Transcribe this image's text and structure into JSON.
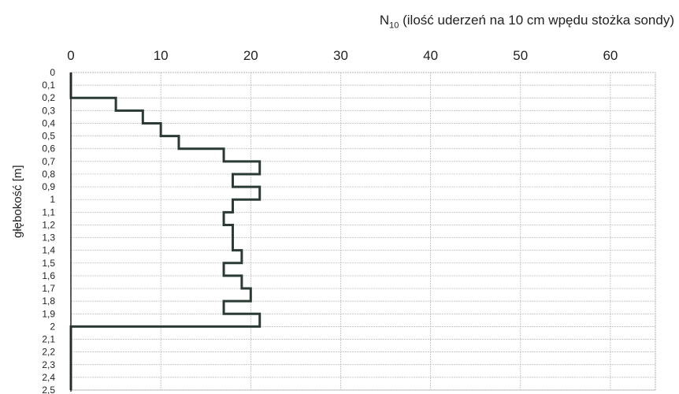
{
  "chart_data": {
    "type": "line",
    "title_main": "N",
    "title_sub": "10",
    "title_rest": " (ilość uderzeń na 10 cm wpędu stożka sondy)",
    "ylabel": "głębokość [m]",
    "xlim": [
      0,
      65
    ],
    "ylim": [
      0,
      2.5
    ],
    "x_ticks": [
      0,
      10,
      20,
      30,
      40,
      50,
      60
    ],
    "y_tick_labels": [
      "0",
      "0,1",
      "0,2",
      "0,3",
      "0,4",
      "0,5",
      "0,6",
      "0,7",
      "0,8",
      "0,9",
      "1",
      "1,1",
      "1,2",
      "1,3",
      "1,4",
      "1,5",
      "1,6",
      "1,7",
      "1,8",
      "1,9",
      "2",
      "2,1",
      "2,2",
      "2,3",
      "2,4",
      "2,5"
    ],
    "grid": true,
    "line_color": "#2b3a33",
    "series": [
      {
        "style": "step",
        "depth_intervals": [
          [
            0.0,
            0.2,
            0
          ],
          [
            0.2,
            0.3,
            5
          ],
          [
            0.3,
            0.4,
            8
          ],
          [
            0.4,
            0.5,
            10
          ],
          [
            0.5,
            0.6,
            12
          ],
          [
            0.6,
            0.7,
            17
          ],
          [
            0.7,
            0.8,
            21
          ],
          [
            0.8,
            0.9,
            18
          ],
          [
            0.9,
            1.0,
            21
          ],
          [
            1.0,
            1.1,
            18
          ],
          [
            1.1,
            1.2,
            17
          ],
          [
            1.2,
            1.4,
            18
          ],
          [
            1.4,
            1.5,
            19
          ],
          [
            1.5,
            1.6,
            17
          ],
          [
            1.6,
            1.7,
            19
          ],
          [
            1.7,
            1.8,
            20
          ],
          [
            1.8,
            1.9,
            17
          ],
          [
            1.9,
            2.0,
            21
          ],
          [
            2.0,
            2.5,
            0
          ]
        ]
      }
    ]
  }
}
